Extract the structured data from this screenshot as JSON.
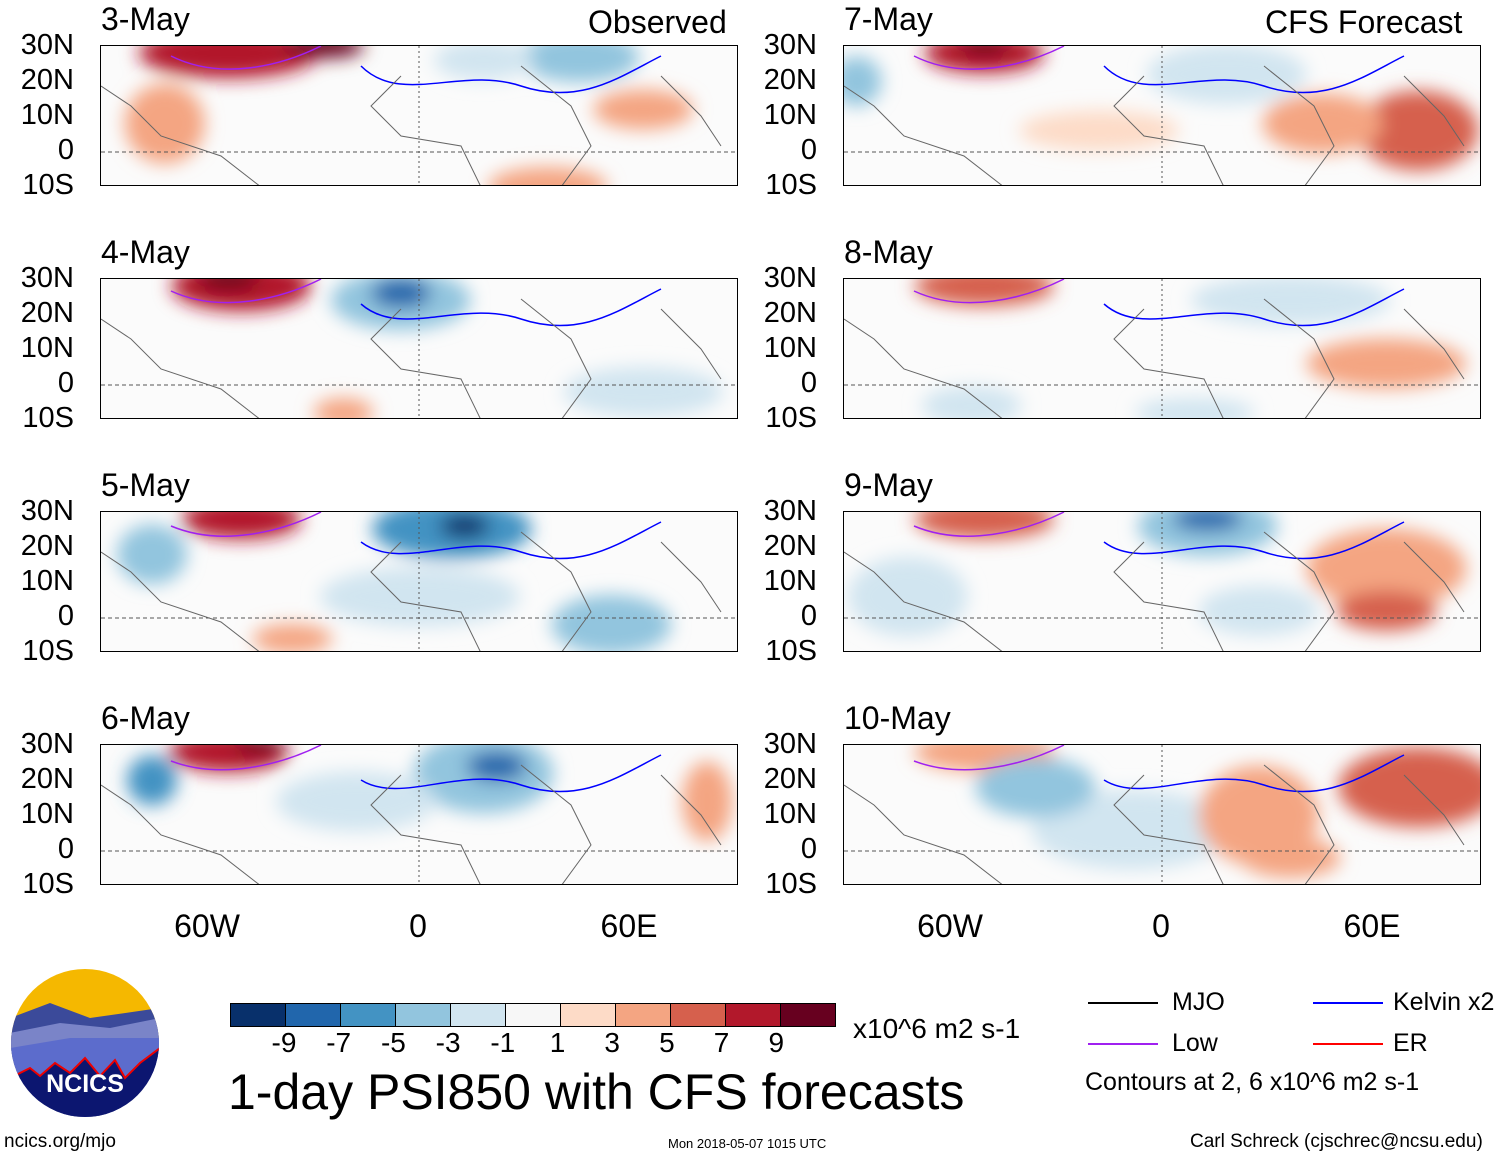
{
  "titles": {
    "left": "Observed",
    "right": "CFS Forecast"
  },
  "panels_left": [
    {
      "date": "3-May"
    },
    {
      "date": "4-May"
    },
    {
      "date": "5-May"
    },
    {
      "date": "6-May"
    }
  ],
  "panels_right": [
    {
      "date": "7-May"
    },
    {
      "date": "8-May"
    },
    {
      "date": "9-May"
    },
    {
      "date": "10-May"
    }
  ],
  "chart_data": {
    "type": "heatmap",
    "title": "1-day PSI850 with CFS forecasts",
    "variable": "PSI850 anomaly",
    "lat_ticks": [
      "30N",
      "20N",
      "10N",
      "0",
      "10S"
    ],
    "lon_ticks": [
      "60W",
      "0",
      "60E"
    ],
    "lat_range": [
      -10,
      30
    ],
    "colorbar": {
      "levels": [
        "-9",
        "-7",
        "-5",
        "-3",
        "-1",
        "1",
        "3",
        "5",
        "7",
        "9"
      ],
      "colors": [
        "#08306b",
        "#2166ac",
        "#4393c3",
        "#92c5de",
        "#d1e5f0",
        "#f7f7f7",
        "#fddbc7",
        "#f4a582",
        "#d6604d",
        "#b2182b",
        "#67001f"
      ],
      "units": "x10^6 m2 s-1"
    },
    "legend": [
      {
        "label": "MJO",
        "color": "#000000"
      },
      {
        "label": "Kelvin x2",
        "color": "#0000ff"
      },
      {
        "label": "Low",
        "color": "#a020f0"
      },
      {
        "label": "ER",
        "color": "#ff0000"
      }
    ],
    "contour_note": "Contours at 2, 6 x10^6 m2 s-1"
  },
  "logo": "NCICS",
  "footer": {
    "url": "ncics.org/mjo",
    "timestamp": "Mon 2018-05-07 1015 UTC",
    "credit": "Carl Schreck (cjschrec@ncsu.edu)"
  }
}
